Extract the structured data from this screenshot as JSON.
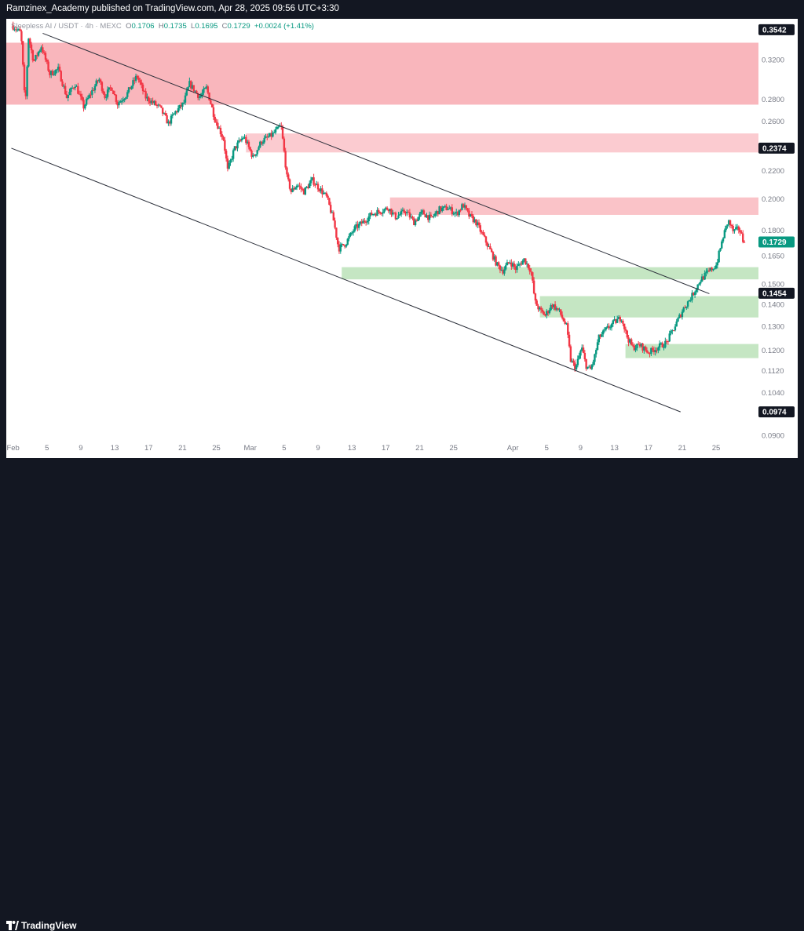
{
  "header": {
    "published_text": "Ramzinex_Academy published on TradingView.com, Apr 28, 2025 09:56 UTC+3:30"
  },
  "footer": {
    "brand": "TradingView"
  },
  "legend": {
    "symbol": "Sleepless AI / USDT · 4h · MEXC",
    "open_label": "O",
    "open": "0.1706",
    "high_label": "H",
    "high": "0.1735",
    "low_label": "L",
    "low": "0.1695",
    "close_label": "C",
    "close": "0.1729",
    "change": "+0.0024 (+1.41%)"
  },
  "colors": {
    "up": "#089981",
    "down": "#f23645",
    "resistance_zone": "#f8a9b0",
    "demand_zone": "#b7e0b4",
    "axis_text": "#787b86"
  },
  "chart_data": {
    "type": "candlestick",
    "title": "Sleepless AI / USDT · 4h · MEXC",
    "x_tick_labels": [
      "Feb",
      "5",
      "9",
      "13",
      "17",
      "21",
      "25",
      "Mar",
      "5",
      "9",
      "13",
      "17",
      "21",
      "25",
      "Apr",
      "5",
      "9",
      "13",
      "17",
      "21",
      "25"
    ],
    "x_tick_days": [
      1,
      5,
      9,
      13,
      17,
      21,
      25,
      29,
      33,
      37,
      41,
      45,
      49,
      53,
      60,
      64,
      68,
      72,
      76,
      80,
      84
    ],
    "x_axis_note": "day index counted from Feb 1, 2025",
    "xlim": [
      0.2,
      89.0
    ],
    "y_scale": "log",
    "ylim": [
      0.0874,
      0.3675
    ],
    "y_tick_values": [
      0.09,
      0.104,
      0.112,
      0.12,
      0.13,
      0.14,
      0.15,
      0.165,
      0.18,
      0.2,
      0.22,
      0.26,
      0.28,
      0.32
    ],
    "y_tick_labels": [
      "0.0900",
      "0.1040",
      "0.1120",
      "0.1200",
      "0.1300",
      "0.1400",
      "0.1500",
      "0.1650",
      "0.1800",
      "0.2000",
      "0.2200",
      "0.2600",
      "0.2800",
      "0.3200"
    ],
    "price_badges": [
      {
        "value": 0.3542,
        "label": "0.3542",
        "style": "dark"
      },
      {
        "value": 0.2374,
        "label": "0.2374",
        "style": "dark"
      },
      {
        "value": 0.1729,
        "label": "0.1729",
        "style": "green"
      },
      {
        "value": 0.1454,
        "label": "0.1454",
        "style": "dark"
      },
      {
        "value": 0.0974,
        "label": "0.0974",
        "style": "dark"
      }
    ],
    "zones": [
      {
        "kind": "resistance",
        "x_start": 0.2,
        "x_end": 89.0,
        "y_low": 0.275,
        "y_high": 0.339,
        "opacity": 0.85
      },
      {
        "kind": "resistance",
        "x_start": 28.5,
        "x_end": 89.0,
        "y_low": 0.234,
        "y_high": 0.2495,
        "opacity": 0.6
      },
      {
        "kind": "resistance",
        "x_start": 45.5,
        "x_end": 89.0,
        "y_low": 0.1895,
        "y_high": 0.201,
        "opacity": 0.7
      },
      {
        "kind": "demand",
        "x_start": 39.8,
        "x_end": 89.0,
        "y_low": 0.1524,
        "y_high": 0.1588,
        "opacity": 0.8
      },
      {
        "kind": "demand",
        "x_start": 63.2,
        "x_end": 89.0,
        "y_low": 0.134,
        "y_high": 0.144,
        "opacity": 0.8
      },
      {
        "kind": "demand",
        "x_start": 73.3,
        "x_end": 89.0,
        "y_low": 0.1168,
        "y_high": 0.1225,
        "opacity": 0.8
      }
    ],
    "trend_lines": [
      {
        "x1": 4.5,
        "y1": 0.35,
        "x2": 83.2,
        "y2": 0.1452
      },
      {
        "x1": 0.8,
        "y1": 0.2374,
        "x2": 79.8,
        "y2": 0.0974
      }
    ],
    "path_points": [
      [
        1.0,
        0.36
      ],
      [
        2.1,
        0.35
      ],
      [
        2.6,
        0.27
      ],
      [
        3.0,
        0.345
      ],
      [
        3.6,
        0.318
      ],
      [
        4.5,
        0.335
      ],
      [
        5.5,
        0.305
      ],
      [
        6.5,
        0.31
      ],
      [
        7.5,
        0.282
      ],
      [
        8.5,
        0.295
      ],
      [
        9.5,
        0.273
      ],
      [
        10.5,
        0.288
      ],
      [
        11.3,
        0.3
      ],
      [
        12.0,
        0.283
      ],
      [
        12.8,
        0.292
      ],
      [
        13.5,
        0.276
      ],
      [
        14.6,
        0.285
      ],
      [
        15.8,
        0.303
      ],
      [
        16.8,
        0.282
      ],
      [
        18.5,
        0.272
      ],
      [
        19.5,
        0.258
      ],
      [
        20.3,
        0.268
      ],
      [
        21.3,
        0.276
      ],
      [
        22.0,
        0.295
      ],
      [
        23.2,
        0.282
      ],
      [
        24.0,
        0.291
      ],
      [
        25.0,
        0.262
      ],
      [
        26.0,
        0.245
      ],
      [
        26.5,
        0.22
      ],
      [
        27.3,
        0.237
      ],
      [
        28.4,
        0.247
      ],
      [
        29.5,
        0.23
      ],
      [
        30.5,
        0.243
      ],
      [
        31.7,
        0.248
      ],
      [
        32.8,
        0.256
      ],
      [
        33.5,
        0.215
      ],
      [
        34.0,
        0.205
      ],
      [
        34.7,
        0.21
      ],
      [
        35.5,
        0.205
      ],
      [
        36.5,
        0.213
      ],
      [
        37.5,
        0.206
      ],
      [
        38.2,
        0.201
      ],
      [
        39.0,
        0.186
      ],
      [
        39.6,
        0.169
      ],
      [
        40.4,
        0.172
      ],
      [
        41.5,
        0.181
      ],
      [
        42.5,
        0.185
      ],
      [
        43.5,
        0.19
      ],
      [
        44.5,
        0.192
      ],
      [
        45.5,
        0.194
      ],
      [
        46.3,
        0.188
      ],
      [
        47.5,
        0.192
      ],
      [
        48.5,
        0.185
      ],
      [
        49.5,
        0.191
      ],
      [
        50.5,
        0.187
      ],
      [
        51.5,
        0.193
      ],
      [
        52.5,
        0.194
      ],
      [
        53.5,
        0.19
      ],
      [
        54.3,
        0.196
      ],
      [
        55.0,
        0.189
      ],
      [
        55.8,
        0.185
      ],
      [
        56.5,
        0.178
      ],
      [
        57.5,
        0.168
      ],
      [
        58.3,
        0.16
      ],
      [
        59.0,
        0.157
      ],
      [
        59.8,
        0.162
      ],
      [
        60.5,
        0.158
      ],
      [
        61.5,
        0.163
      ],
      [
        62.3,
        0.157
      ],
      [
        62.8,
        0.141
      ],
      [
        63.4,
        0.137
      ],
      [
        64.0,
        0.135
      ],
      [
        64.8,
        0.14
      ],
      [
        65.6,
        0.137
      ],
      [
        66.5,
        0.13
      ],
      [
        67.0,
        0.116
      ],
      [
        67.6,
        0.113
      ],
      [
        68.3,
        0.121
      ],
      [
        68.8,
        0.114
      ],
      [
        69.3,
        0.112
      ],
      [
        69.8,
        0.117
      ],
      [
        70.3,
        0.125
      ],
      [
        71.3,
        0.129
      ],
      [
        72.2,
        0.132
      ],
      [
        73.0,
        0.134
      ],
      [
        73.6,
        0.126
      ],
      [
        74.3,
        0.121
      ],
      [
        75.2,
        0.122
      ],
      [
        76.2,
        0.119
      ],
      [
        77.2,
        0.121
      ],
      [
        78.3,
        0.123
      ],
      [
        79.3,
        0.13
      ],
      [
        80.3,
        0.138
      ],
      [
        81.3,
        0.144
      ],
      [
        82.3,
        0.152
      ],
      [
        83.2,
        0.156
      ],
      [
        84.2,
        0.16
      ],
      [
        85.0,
        0.176
      ],
      [
        85.6,
        0.186
      ],
      [
        86.2,
        0.179
      ],
      [
        86.9,
        0.181
      ],
      [
        87.4,
        0.1729
      ]
    ]
  }
}
